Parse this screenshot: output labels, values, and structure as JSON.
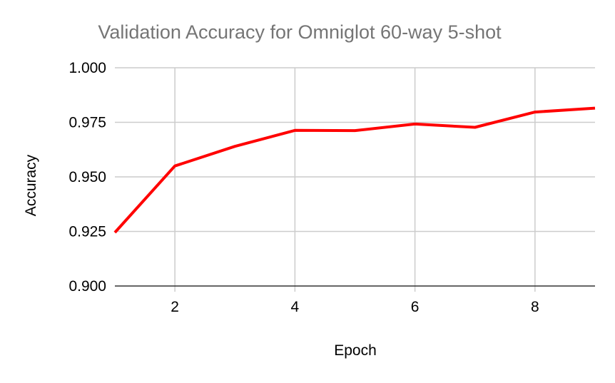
{
  "chart_data": {
    "type": "line",
    "title": "Validation Accuracy for Omniglot 60-way 5-shot",
    "xlabel": "Epoch",
    "ylabel": "Accuracy",
    "xlim": [
      1,
      9
    ],
    "ylim": [
      0.9,
      1.0
    ],
    "xticks": [
      2,
      4,
      6,
      8
    ],
    "xtick_labels": [
      "2",
      "4",
      "6",
      "8"
    ],
    "yticks": [
      0.9,
      0.925,
      0.95,
      0.975,
      1.0
    ],
    "ytick_labels": [
      "0.900",
      "0.925",
      "0.950",
      "0.975",
      "1.000"
    ],
    "grid": true,
    "legend": "none",
    "series": [
      {
        "color": "#ff0000",
        "x": [
          1,
          2,
          3,
          4,
          5,
          6,
          7,
          8,
          9
        ],
        "y": [
          0.9245,
          0.955,
          0.964,
          0.9713,
          0.9712,
          0.9742,
          0.9727,
          0.9797,
          0.9815
        ]
      }
    ]
  }
}
